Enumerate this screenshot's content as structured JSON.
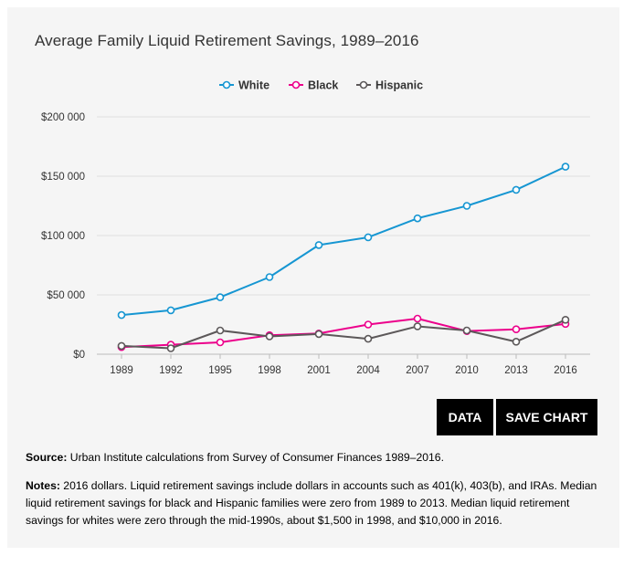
{
  "chart_title": "Average Family Liquid Retirement Savings, 1989–2016",
  "buttons": {
    "data": "DATA",
    "save_chart": "SAVE CHART"
  },
  "source": {
    "label": "Source:",
    "text": " Urban Institute calculations from Survey of Consumer Finances 1989–2016."
  },
  "notes": {
    "label": "Notes:",
    "text": " 2016 dollars. Liquid retirement savings include dollars in accounts such as 401(k), 403(b), and IRAs. Median liquid retirement savings for black and Hispanic families were zero from 1989 to 2013. Median liquid retirement savings for whites were zero through the mid-1990s, about $1,500 in 1998, and $10,000 in 2016."
  },
  "chart_data": {
    "type": "line",
    "title": "Average Family Liquid Retirement Savings, 1989–2016",
    "x": [
      "1989",
      "1992",
      "1995",
      "1998",
      "2001",
      "2004",
      "2007",
      "2010",
      "2013",
      "2016"
    ],
    "ylim": [
      0,
      200000
    ],
    "yticks": [
      0,
      50000,
      100000,
      150000,
      200000
    ],
    "ytick_labels": [
      "$0",
      "$50 000",
      "$100 000",
      "$150 000",
      "$200 000"
    ],
    "grid": true,
    "legend_position": "top-center",
    "series": [
      {
        "name": "White",
        "color": "#1696d2",
        "values": [
          33000,
          37000,
          48000,
          65000,
          92000,
          98500,
          114500,
          125000,
          138500,
          158000
        ]
      },
      {
        "name": "Black",
        "color": "#ec008b",
        "values": [
          6000,
          8000,
          10000,
          16000,
          17500,
          25000,
          30000,
          19500,
          21000,
          25500
        ]
      },
      {
        "name": "Hispanic",
        "color": "#5c5859",
        "values": [
          7000,
          5000,
          20000,
          15000,
          17000,
          13000,
          23500,
          20000,
          10500,
          29000
        ]
      }
    ]
  }
}
